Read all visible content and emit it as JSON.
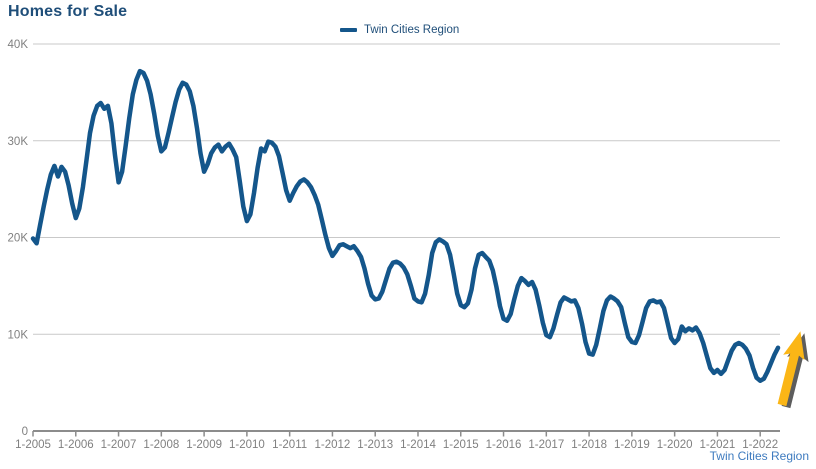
{
  "page": {
    "title": "Homes for Sale"
  },
  "legend": {
    "label": "Twin Cities Region",
    "marker": "line-swatch"
  },
  "footer": {
    "link_label": "Twin Cities Region"
  },
  "chart_data": {
    "type": "line",
    "title": "Homes for Sale",
    "xlabel": "",
    "ylabel": "",
    "units": "thousands of homes",
    "x_frequency": "monthly",
    "x_start": "1-2005",
    "x_end": "6-2022",
    "x_tick_labels": [
      "1-2005",
      "1-2006",
      "1-2007",
      "1-2008",
      "1-2009",
      "1-2010",
      "1-2011",
      "1-2012",
      "1-2013",
      "1-2014",
      "1-2015",
      "1-2016",
      "1-2017",
      "1-2018",
      "1-2019",
      "1-2020",
      "1-2021",
      "1-2022"
    ],
    "y_tick_labels": [
      "40K",
      "30K",
      "20K",
      "10K",
      "0"
    ],
    "y_tick_values": [
      40,
      30,
      20,
      10,
      0
    ],
    "ylim": [
      0,
      40
    ],
    "grid": "horizontal-only",
    "legend_position": "top-center",
    "series": [
      {
        "name": "Twin Cities Region",
        "color": "#14568B",
        "values_by_year": {
          "2005": [
            19.9,
            19.4,
            21.3,
            23.2,
            25.0,
            26.5,
            27.4,
            26.3,
            27.3,
            26.8,
            25.4,
            23.5
          ],
          "2006": [
            22.0,
            23.0,
            25.2,
            28.0,
            30.8,
            32.6,
            33.6,
            33.9,
            33.3,
            33.6,
            31.8,
            28.5
          ],
          "2007": [
            25.7,
            26.8,
            29.5,
            32.3,
            34.8,
            36.3,
            37.2,
            37.0,
            36.2,
            34.8,
            32.8,
            30.5
          ],
          "2008": [
            28.9,
            29.3,
            30.8,
            32.4,
            34.0,
            35.3,
            36.0,
            35.8,
            35.1,
            33.6,
            31.3,
            28.7
          ],
          "2009": [
            26.8,
            27.6,
            28.7,
            29.3,
            29.6,
            28.9,
            29.4,
            29.7,
            29.1,
            28.3,
            25.8,
            23.2
          ],
          "2010": [
            21.7,
            22.4,
            24.6,
            27.2,
            29.2,
            28.9,
            29.9,
            29.8,
            29.4,
            28.4,
            26.7,
            24.9
          ],
          "2011": [
            23.8,
            24.6,
            25.3,
            25.8,
            26.0,
            25.7,
            25.2,
            24.4,
            23.4,
            21.9,
            20.3,
            18.9
          ],
          "2012": [
            18.1,
            18.6,
            19.2,
            19.3,
            19.1,
            18.9,
            19.1,
            18.6,
            18.0,
            16.8,
            15.2,
            14.0
          ],
          "2013": [
            13.6,
            13.7,
            14.4,
            15.6,
            16.8,
            17.4,
            17.5,
            17.3,
            16.9,
            16.2,
            15.0,
            13.7
          ],
          "2014": [
            13.4,
            13.3,
            14.2,
            16.1,
            18.4,
            19.5,
            19.8,
            19.6,
            19.3,
            18.2,
            16.3,
            14.2
          ],
          "2015": [
            13.0,
            12.8,
            13.2,
            14.6,
            16.8,
            18.2,
            18.4,
            18.0,
            17.6,
            16.6,
            14.9,
            12.9
          ],
          "2016": [
            11.6,
            11.4,
            12.1,
            13.6,
            15.0,
            15.8,
            15.5,
            15.1,
            15.4,
            14.6,
            13.0,
            11.2
          ],
          "2017": [
            9.9,
            9.7,
            10.6,
            12.0,
            13.3,
            13.8,
            13.6,
            13.4,
            13.5,
            12.7,
            11.1,
            9.2
          ],
          "2018": [
            8.0,
            7.9,
            8.9,
            10.6,
            12.4,
            13.5,
            13.9,
            13.7,
            13.4,
            12.8,
            11.2,
            9.7
          ],
          "2019": [
            9.2,
            9.1,
            9.9,
            11.3,
            12.7,
            13.4,
            13.5,
            13.3,
            13.4,
            12.7,
            11.2,
            9.6
          ],
          "2020": [
            9.1,
            9.5,
            10.8,
            10.3,
            10.6,
            10.4,
            10.7,
            10.1,
            9.1,
            7.8,
            6.5,
            6.0
          ],
          "2021": [
            6.3,
            5.9,
            6.3,
            7.3,
            8.3,
            8.9,
            9.1,
            8.9,
            8.5,
            7.8,
            6.5,
            5.5
          ],
          "2022": [
            5.2,
            5.4,
            6.1,
            7.0,
            7.9,
            8.6
          ]
        }
      }
    ],
    "annotations": [
      {
        "type": "arrow",
        "direction": "up-right",
        "location": "end-of-series",
        "color": "#FBB616",
        "shadow_color": "#4B4B4B"
      }
    ],
    "colors": {
      "line": "#14568B",
      "gridline": "#C9C9C9",
      "axis": "#8C8C8C",
      "tick_label": "#808080",
      "title": "#1F4E79",
      "legend_text": "#1F4E79",
      "footer_link": "#3E7BBF",
      "arrow": "#FBB616",
      "arrow_shadow": "#4B4B4B"
    }
  }
}
